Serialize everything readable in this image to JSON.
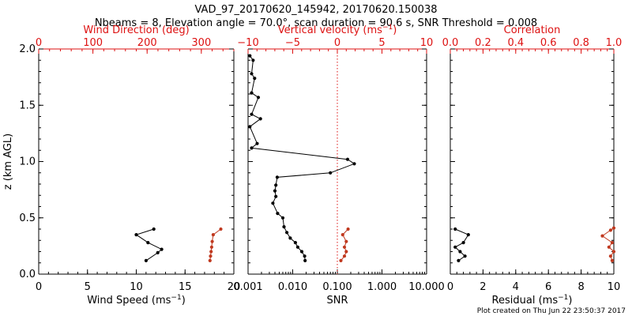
{
  "title_line1": "VAD_97_20170620_145942, 20170620.150038",
  "title_line2": "Nbeams = 8, Elevation angle = 70.0°, scan duration = 90.6 s, SNR Threshold = 0.008",
  "footer": "Plot created on Thu Jun 22 23:50:37 2017",
  "colors": {
    "black_series": "#000000",
    "red_series": "#c0391f",
    "red_axis": "#dd1111"
  },
  "chart_data": [
    {
      "type": "line",
      "name": "wind",
      "ylabel": "z (km AGL)",
      "ylim": [
        0,
        2.0
      ],
      "y_ticks": [
        "0.0",
        "0.5",
        "1.0",
        "1.5",
        "2.0"
      ],
      "y_tick_values": [
        0,
        0.5,
        1.0,
        1.5,
        2.0
      ],
      "bottom_axis": {
        "label": "Wind Speed (ms",
        "label_sup": "−1",
        "label_close": ")",
        "range": [
          0,
          20
        ],
        "ticks": [
          "0",
          "5",
          "10",
          "15",
          "20"
        ],
        "tick_values": [
          0,
          5,
          10,
          15,
          20
        ]
      },
      "top_axis": {
        "label": "Wind Direction (deg)",
        "range": [
          0,
          360
        ],
        "ticks": [
          "0",
          "100",
          "200",
          "300"
        ],
        "tick_values": [
          0,
          100,
          200,
          300
        ]
      },
      "series": [
        {
          "axis": "bottom",
          "color": "black",
          "points": [
            [
              11.0,
              0.12
            ],
            [
              12.2,
              0.19
            ],
            [
              12.6,
              0.22
            ],
            [
              11.2,
              0.28
            ],
            [
              10.0,
              0.35
            ],
            [
              11.8,
              0.4
            ]
          ]
        },
        {
          "axis": "top",
          "color": "red",
          "points": [
            [
              316,
              0.12
            ],
            [
              317,
              0.16
            ],
            [
              318,
              0.2
            ],
            [
              319,
              0.24
            ],
            [
              320,
              0.29
            ],
            [
              322,
              0.35
            ],
            [
              336,
              0.4
            ]
          ]
        }
      ]
    },
    {
      "type": "line",
      "name": "snr",
      "ylim": [
        0,
        2.0
      ],
      "y_tick_values": [
        0,
        0.5,
        1.0,
        1.5,
        2.0
      ],
      "bottom_axis": {
        "label": "SNR",
        "scale": "log",
        "range": [
          0.001,
          10.0
        ],
        "ticks": [
          "0.001",
          "0.010",
          "0.100",
          "1.000",
          "10.000"
        ],
        "tick_values": [
          0.001,
          0.01,
          0.1,
          1,
          10
        ]
      },
      "top_axis": {
        "label": "Vertical velocity (ms",
        "label_sup": "−1",
        "label_close": ")",
        "range": [
          -10,
          10
        ],
        "ticks": [
          "−10",
          "−5",
          "0",
          "5",
          "10"
        ],
        "tick_values": [
          -10,
          -5,
          0,
          5,
          10
        ]
      },
      "vertical_reference_line": {
        "axis": "top",
        "value": 0
      },
      "series": [
        {
          "axis": "bottom",
          "color": "black",
          "points": [
            [
              0.019,
              0.12
            ],
            [
              0.0185,
              0.16
            ],
            [
              0.016,
              0.2
            ],
            [
              0.013,
              0.24
            ],
            [
              0.0115,
              0.28
            ],
            [
              0.0088,
              0.32
            ],
            [
              0.0074,
              0.37
            ],
            [
              0.0064,
              0.42
            ],
            [
              0.006,
              0.5
            ],
            [
              0.0046,
              0.54
            ],
            [
              0.0036,
              0.63
            ],
            [
              0.0042,
              0.69
            ],
            [
              0.004,
              0.74
            ],
            [
              0.0042,
              0.79
            ],
            [
              0.0045,
              0.86
            ],
            [
              0.07,
              0.9
            ],
            [
              0.24,
              0.98
            ],
            [
              0.17,
              1.02
            ],
            [
              0.0012,
              1.12
            ],
            [
              0.0016,
              1.16
            ],
            [
              0.0011,
              1.31
            ],
            [
              0.0019,
              1.38
            ],
            [
              0.0012,
              1.42
            ],
            [
              0.0017,
              1.57
            ],
            [
              0.0012,
              1.61
            ],
            [
              0.0014,
              1.74
            ],
            [
              0.0012,
              1.78
            ],
            [
              0.0013,
              1.9
            ],
            [
              0.0011,
              1.94
            ]
          ]
        },
        {
          "axis": "top",
          "color": "red",
          "points": [
            [
              0.4,
              0.12
            ],
            [
              0.8,
              0.16
            ],
            [
              1.0,
              0.2
            ],
            [
              0.8,
              0.24
            ],
            [
              1.0,
              0.29
            ],
            [
              0.6,
              0.35
            ],
            [
              1.2,
              0.4
            ]
          ]
        }
      ]
    },
    {
      "type": "line",
      "name": "residual",
      "ylim": [
        0,
        2.0
      ],
      "y_tick_values": [
        0,
        0.5,
        1.0,
        1.5,
        2.0
      ],
      "bottom_axis": {
        "label": "Residual (ms",
        "label_sup": "−1",
        "label_close": ")",
        "range": [
          0,
          10
        ],
        "ticks": [
          "0",
          "2",
          "4",
          "6",
          "8",
          "10"
        ],
        "tick_values": [
          0,
          2,
          4,
          6,
          8,
          10
        ]
      },
      "top_axis": {
        "label": "Correlation",
        "range": [
          0,
          1.0
        ],
        "ticks": [
          "0.0",
          "0.2",
          "0.4",
          "0.6",
          "0.8",
          "1.0"
        ],
        "tick_values": [
          0,
          0.2,
          0.4,
          0.6,
          0.8,
          1.0
        ]
      },
      "series": [
        {
          "axis": "bottom",
          "color": "black",
          "points": [
            [
              0.5,
              0.12
            ],
            [
              0.9,
              0.16
            ],
            [
              0.6,
              0.2
            ],
            [
              0.3,
              0.24
            ],
            [
              0.8,
              0.28
            ],
            [
              1.1,
              0.35
            ],
            [
              0.3,
              0.4
            ]
          ]
        },
        {
          "axis": "top",
          "color": "red",
          "points": [
            [
              0.99,
              0.12
            ],
            [
              0.98,
              0.16
            ],
            [
              1.0,
              0.2
            ],
            [
              0.97,
              0.24
            ],
            [
              0.99,
              0.28
            ],
            [
              0.93,
              0.34
            ],
            [
              0.98,
              0.39
            ],
            [
              1.0,
              0.41
            ]
          ]
        }
      ]
    }
  ]
}
